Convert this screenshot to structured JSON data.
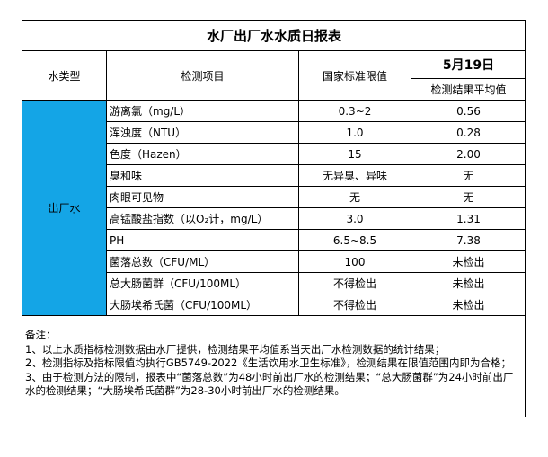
{
  "title": "水厂出厂水水质日报表",
  "headers": {
    "type": "水类型",
    "item": "检测项目",
    "limit": "国家标准限值",
    "date": "5月19日",
    "result": "检测结果平均值"
  },
  "water_type": "出厂水",
  "rows": [
    {
      "item": "游离氯（mg/L）",
      "limit": "0.3~2",
      "result": "0.56"
    },
    {
      "item": "浑浊度（NTU）",
      "limit": "1.0",
      "result": "0.28"
    },
    {
      "item": "色度（Hazen）",
      "limit": "15",
      "result": "2.00"
    },
    {
      "item": "臭和味",
      "limit": "无异臭、异味",
      "result": "无"
    },
    {
      "item": "肉眼可见物",
      "limit": "无",
      "result": "无"
    },
    {
      "item": "高锰酸盐指数（以O₂计，mg/L）",
      "limit": "3.0",
      "result": "1.31"
    },
    {
      "item": "PH",
      "limit": "6.5~8.5",
      "result": "7.38"
    },
    {
      "item": "菌落总数（CFU/ML）",
      "limit": "100",
      "result": "未检出"
    },
    {
      "item": "总大肠菌群（CFU/100ML）",
      "limit": "不得检出",
      "result": "未检出"
    },
    {
      "item": "大肠埃希氏菌（CFU/100ML）",
      "limit": "不得检出",
      "result": "未检出"
    }
  ],
  "notes": {
    "heading": "备注：",
    "lines": [
      "1、以上水质指标检测数据由水厂提供，检测结果平均值系当天出厂水检测数据的统计结果；",
      "2、检测指标及指标限值均执行GB5749-2022《生活饮用水卫生标准》，检测结果在限值范围内即为合格；",
      "3、由于检测方法的限制，报表中“菌落总数”为48小时前出厂水的检测结果；“总大肠菌群”为24小时前出厂水的检测结果；“大肠埃希氏菌群”为28-30小时前出厂水的检测结果。"
    ]
  },
  "colors": {
    "water_type_fill": "#14a5e6"
  }
}
